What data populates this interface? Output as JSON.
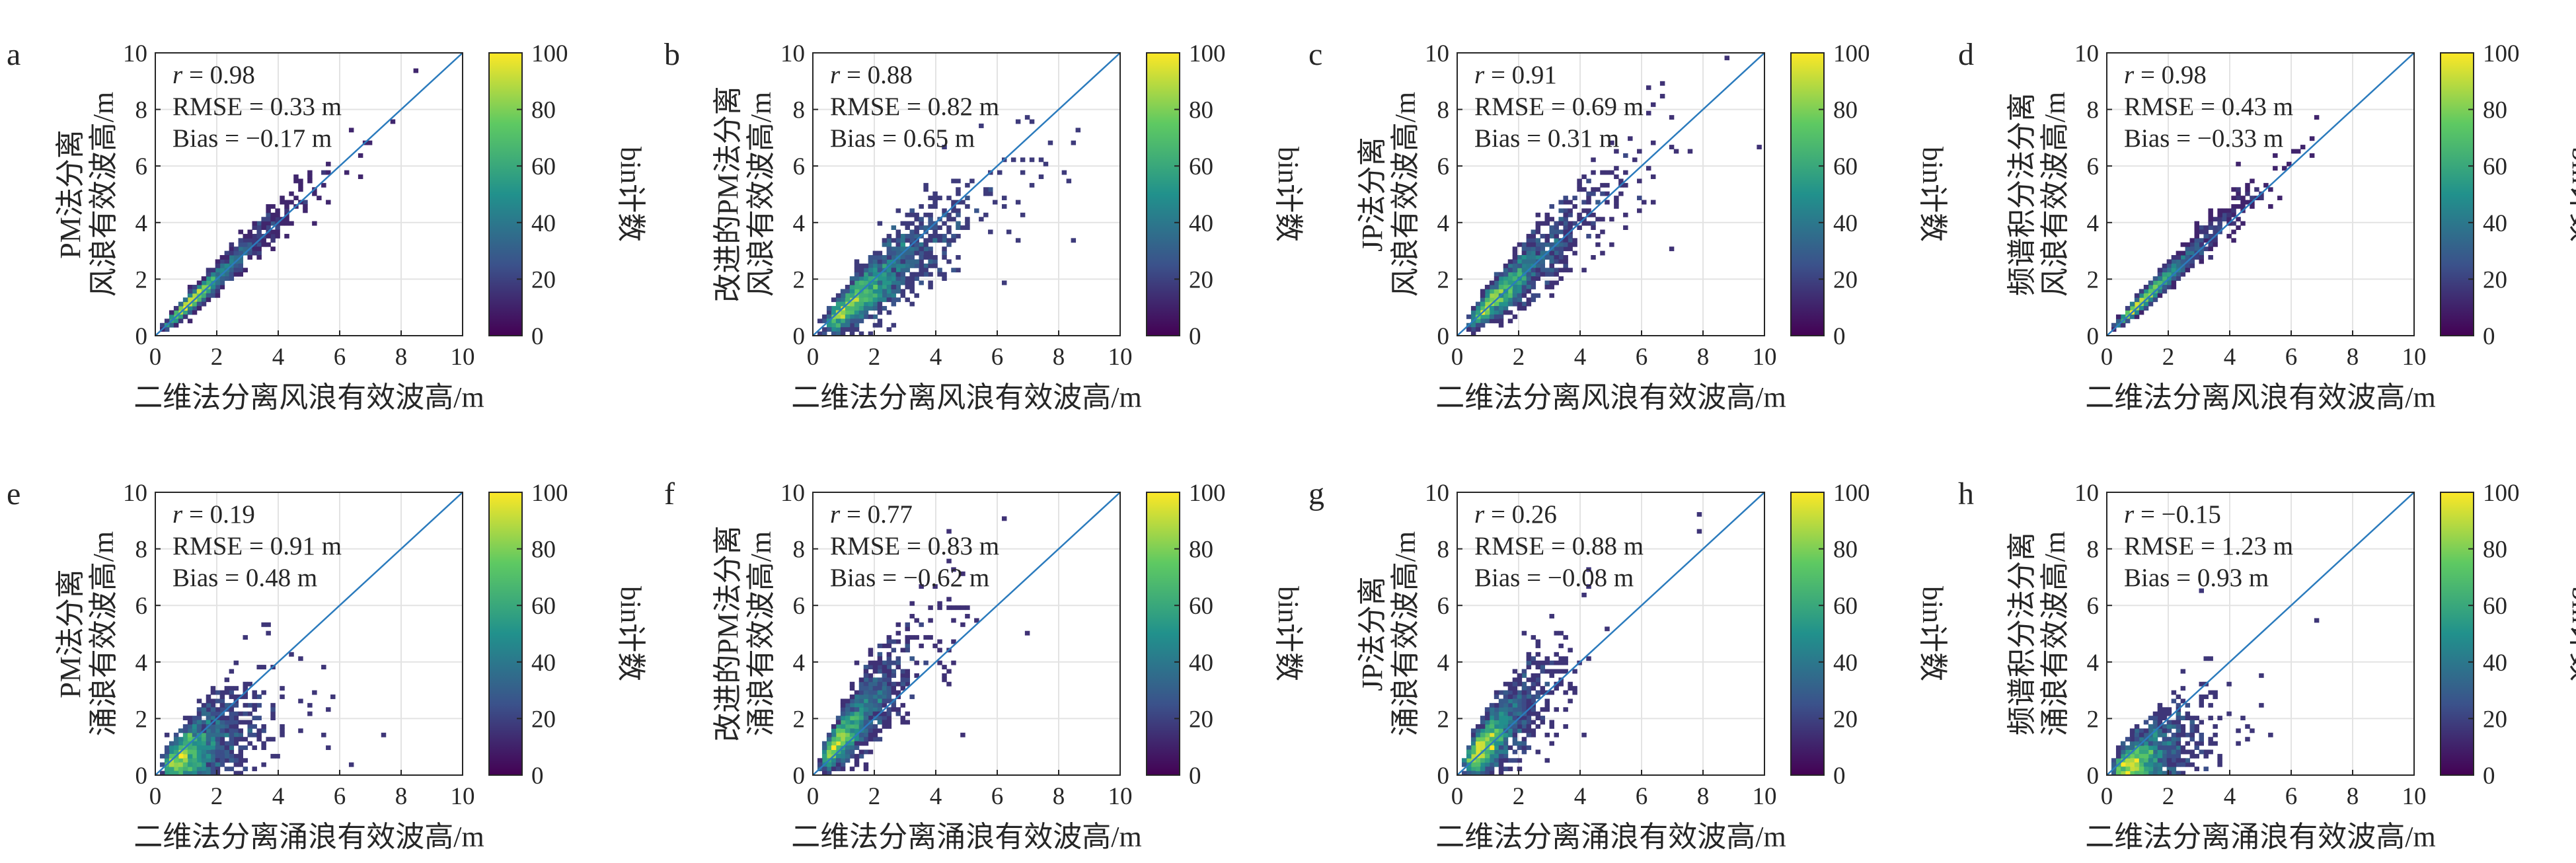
{
  "colors": {
    "identity_line": "#2b7bbd",
    "grid": "#e3e3e3",
    "colormap": [
      "#440154",
      "#3b528b",
      "#21918c",
      "#5ec962",
      "#fde725"
    ]
  },
  "chart_data": [
    {
      "type": "heatmap",
      "letter": "a",
      "xlabel": "二维法分离风浪有效波高/m",
      "ylabel": [
        "PM法分离",
        "风浪有效波高/m"
      ],
      "xlim": [
        0,
        10
      ],
      "ylim": [
        0,
        10
      ],
      "xticks": [
        "0",
        "2",
        "4",
        "6",
        "8",
        "10"
      ],
      "yticks": [
        "0",
        "2",
        "4",
        "6",
        "8",
        "10"
      ],
      "reference_line": "y = x",
      "stats": {
        "r_label": "r",
        "r_value": " = 0.98",
        "rmse": "RMSE = 0.33 m",
        "bias": "Bias = −0.17 m"
      },
      "colorbar": {
        "label": "bin计数",
        "range": [
          0,
          100
        ],
        "ticks": [
          "0",
          "20",
          "40",
          "60",
          "80",
          "100"
        ]
      },
      "scatter_slope": 1.02,
      "scatter_spread": 0.09,
      "scatter_center": [
        1.5,
        1.55
      ]
    },
    {
      "type": "heatmap",
      "letter": "b",
      "xlabel": "二维法分离风浪有效波高/m",
      "ylabel": [
        "改进的PM法分离",
        "风浪有效波高/m"
      ],
      "xlim": [
        0,
        10
      ],
      "ylim": [
        0,
        10
      ],
      "xticks": [
        "0",
        "2",
        "4",
        "6",
        "8",
        "10"
      ],
      "yticks": [
        "0",
        "2",
        "4",
        "6",
        "8",
        "10"
      ],
      "reference_line": "y = x",
      "stats": {
        "r_label": "r",
        "r_value": " = 0.88",
        "rmse": "RMSE = 0.82 m",
        "bias": "Bias = 0.65 m"
      },
      "colorbar": {
        "label": "bin计数",
        "range": [
          0,
          100
        ],
        "ticks": [
          "0",
          "20",
          "40",
          "60",
          "80",
          "100"
        ]
      },
      "scatter_slope": 0.9,
      "scatter_spread": 0.22,
      "scatter_center": [
        1.8,
        1.6
      ]
    },
    {
      "type": "heatmap",
      "letter": "c",
      "xlabel": "二维法分离风浪有效波高/m",
      "ylabel": [
        "JP法分离",
        "风浪有效波高/m"
      ],
      "xlim": [
        0,
        10
      ],
      "ylim": [
        0,
        10
      ],
      "xticks": [
        "0",
        "2",
        "4",
        "6",
        "8",
        "10"
      ],
      "yticks": [
        "0",
        "2",
        "4",
        "6",
        "8",
        "10"
      ],
      "reference_line": "y = x",
      "stats": {
        "r_label": "r",
        "r_value": " = 0.91",
        "rmse": "RMSE = 0.69 m",
        "bias": "Bias = 0.31 m"
      },
      "colorbar": {
        "label": "bin计数",
        "range": [
          0,
          100
        ],
        "ticks": [
          "0",
          "20",
          "40",
          "60",
          "80",
          "100"
        ]
      },
      "scatter_slope": 1.0,
      "scatter_spread": 0.18,
      "scatter_center": [
        1.7,
        1.8
      ]
    },
    {
      "type": "heatmap",
      "letter": "d",
      "xlabel": "二维法分离风浪有效波高/m",
      "ylabel": [
        "频谱积分法分离",
        "风浪有效波高/m"
      ],
      "xlim": [
        0,
        10
      ],
      "ylim": [
        0,
        10
      ],
      "xticks": [
        "0",
        "2",
        "4",
        "6",
        "8",
        "10"
      ],
      "yticks": [
        "0",
        "2",
        "4",
        "6",
        "8",
        "10"
      ],
      "reference_line": "y = x",
      "stats": {
        "r_label": "r",
        "r_value": " = 0.98",
        "rmse": "RMSE = 0.43 m",
        "bias": "Bias = −0.33 m"
      },
      "colorbar": {
        "label": "bin计数",
        "range": [
          0,
          100
        ],
        "ticks": [
          "0",
          "20",
          "40",
          "60",
          "80",
          "100"
        ]
      },
      "scatter_slope": 1.05,
      "scatter_spread": 0.08,
      "scatter_center": [
        1.5,
        1.6
      ]
    },
    {
      "type": "heatmap",
      "letter": "e",
      "xlabel": "二维法分离涌浪有效波高/m",
      "ylabel": [
        "PM法分离",
        "涌浪有效波高/m"
      ],
      "xlim": [
        0,
        10
      ],
      "ylim": [
        0,
        10
      ],
      "xticks": [
        "0",
        "2",
        "4",
        "6",
        "8",
        "10"
      ],
      "yticks": [
        "0",
        "2",
        "4",
        "6",
        "8",
        "10"
      ],
      "reference_line": "y = x",
      "stats": {
        "r_label": "r",
        "r_value": " = 0.19",
        "rmse": "RMSE = 0.91 m",
        "bias": "Bias = 0.48 m"
      },
      "colorbar": {
        "label": "bin计数",
        "range": [
          0,
          100
        ],
        "ticks": [
          "0",
          "20",
          "40",
          "60",
          "80",
          "100"
        ]
      },
      "scatter_slope": 0.55,
      "scatter_spread": 0.35,
      "scatter_center": [
        1.2,
        0.9
      ]
    },
    {
      "type": "heatmap",
      "letter": "f",
      "xlabel": "二维法分离涌浪有效波高/m",
      "ylabel": [
        "改进的PM法分离",
        "涌浪有效波高/m"
      ],
      "xlim": [
        0,
        10
      ],
      "ylim": [
        0,
        10
      ],
      "xticks": [
        "0",
        "2",
        "4",
        "6",
        "8",
        "10"
      ],
      "yticks": [
        "0",
        "2",
        "4",
        "6",
        "8",
        "10"
      ],
      "reference_line": "y = x",
      "stats": {
        "r_label": "r",
        "r_value": " = 0.77",
        "rmse": "RMSE = 0.83 m",
        "bias": "Bias = −0.62 m"
      },
      "colorbar": {
        "label": "bin计数",
        "range": [
          0,
          100
        ],
        "ticks": [
          "0",
          "20",
          "40",
          "60",
          "80",
          "100"
        ]
      },
      "scatter_slope": 1.25,
      "scatter_spread": 0.3,
      "scatter_center": [
        1.2,
        1.7
      ]
    },
    {
      "type": "heatmap",
      "letter": "g",
      "xlabel": "二维法分离涌浪有效波高/m",
      "ylabel": [
        "JP法分离",
        "涌浪有效波高/m"
      ],
      "xlim": [
        0,
        10
      ],
      "ylim": [
        0,
        10
      ],
      "xticks": [
        "0",
        "2",
        "4",
        "6",
        "8",
        "10"
      ],
      "yticks": [
        "0",
        "2",
        "4",
        "6",
        "8",
        "10"
      ],
      "reference_line": "y = x",
      "stats": {
        "r_label": "r",
        "r_value": " = 0.26",
        "rmse": "RMSE = 0.88 m",
        "bias": "Bias = −0.08 m"
      },
      "colorbar": {
        "label": "bin计数",
        "range": [
          0,
          100
        ],
        "ticks": [
          "0",
          "20",
          "40",
          "60",
          "80",
          "100"
        ]
      },
      "scatter_slope": 1.05,
      "scatter_spread": 0.32,
      "scatter_center": [
        1.1,
        1.3
      ]
    },
    {
      "type": "heatmap",
      "letter": "h",
      "xlabel": "二维法分离涌浪有效波高/m",
      "ylabel": [
        "频谱积分法分离",
        "涌浪有效波高/m"
      ],
      "xlim": [
        0,
        10
      ],
      "ylim": [
        0,
        10
      ],
      "xticks": [
        "0",
        "2",
        "4",
        "6",
        "8",
        "10"
      ],
      "yticks": [
        "0",
        "2",
        "4",
        "6",
        "8",
        "10"
      ],
      "reference_line": "y = x",
      "stats": {
        "r_label": "r",
        "r_value": " = −0.15",
        "rmse": "RMSE = 1.23 m",
        "bias": "Bias = 0.93 m"
      },
      "colorbar": {
        "label": "bin计数",
        "range": [
          0,
          100
        ],
        "ticks": [
          "0",
          "20",
          "40",
          "60",
          "80",
          "100"
        ]
      },
      "scatter_slope": 0.35,
      "scatter_spread": 0.35,
      "scatter_center": [
        1.1,
        0.5
      ]
    }
  ]
}
